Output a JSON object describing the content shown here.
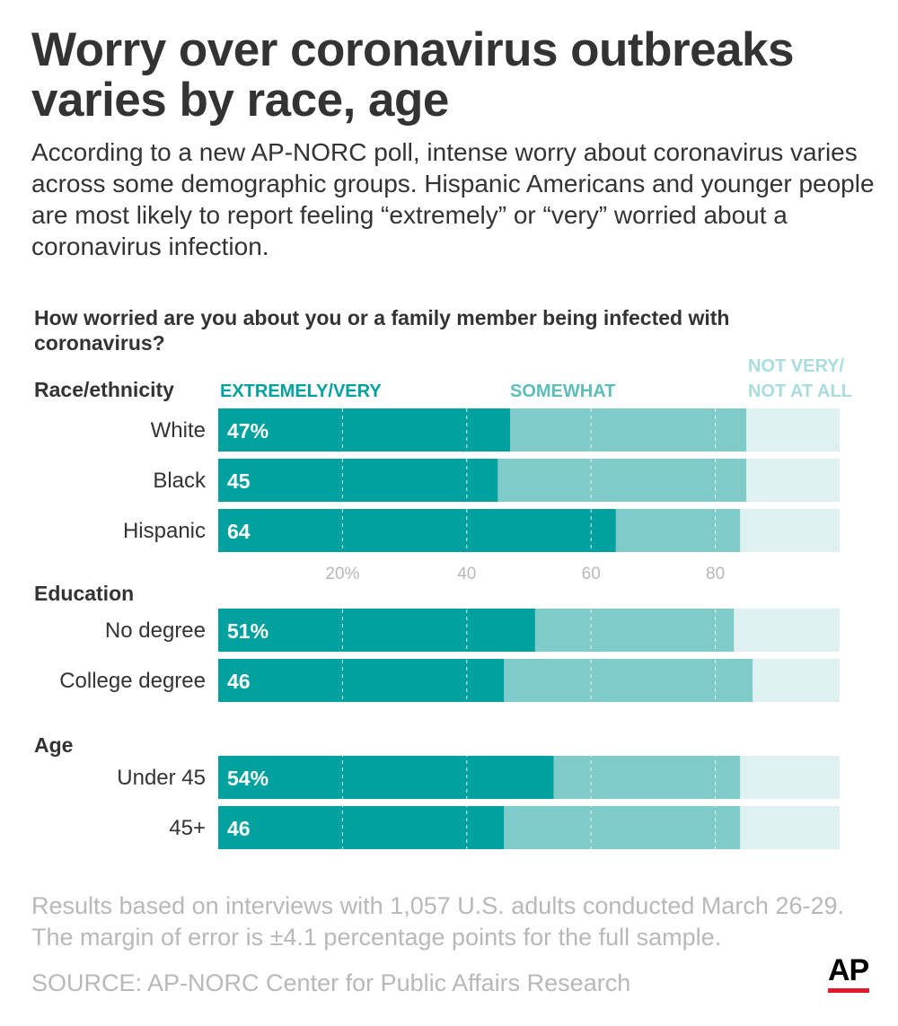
{
  "header": {
    "title": "Worry over coronavirus outbreaks varies by race, age",
    "intro": "According to a new AP-NORC poll, intense worry about coronavirus varies across some demographic groups. Hispanic Americans and younger people are most likely to report feeling “extremely” or “very” worried about a coronavirus infection."
  },
  "footer": {
    "note": "Results based on interviews with 1,057 U.S. adults conducted March 26-29. The margin of error is ±4.1 percentage points for the full sample.",
    "source": "SOURCE: AP-NORC Center for Public Affairs Research",
    "logo_text": "AP",
    "logo_accent": "#e3182d"
  },
  "chart_data": {
    "type": "bar",
    "orientation": "horizontal",
    "stacked": true,
    "title": "How worried are you about you or a family member being infected with coronavirus?",
    "xlim": [
      0,
      100
    ],
    "x_ticks": [
      {
        "value": 20,
        "label": "20%"
      },
      {
        "value": 40,
        "label": "40"
      },
      {
        "value": 60,
        "label": "60"
      },
      {
        "value": 80,
        "label": "80"
      }
    ],
    "grid": true,
    "series": [
      {
        "name": "EXTREMELY/VERY",
        "color": "#00a19e"
      },
      {
        "name": "SOMEWHAT",
        "color": "#7ecbca"
      },
      {
        "name": "NOT VERY/ NOT AT ALL",
        "color": "#dff0f1"
      }
    ],
    "groups": [
      {
        "label": "Race/ethnicity",
        "rows": [
          {
            "label": "White",
            "values": [
              47,
              38,
              15
            ],
            "value_label": "47%"
          },
          {
            "label": "Black",
            "values": [
              45,
              40,
              15
            ],
            "value_label": "45"
          },
          {
            "label": "Hispanic",
            "values": [
              64,
              20,
              16
            ],
            "value_label": "64"
          }
        ]
      },
      {
        "label": "Education",
        "rows": [
          {
            "label": "No degree",
            "values": [
              51,
              32,
              17
            ],
            "value_label": "51%"
          },
          {
            "label": "College degree",
            "values": [
              46,
              40,
              14
            ],
            "value_label": "46"
          }
        ]
      },
      {
        "label": "Age",
        "rows": [
          {
            "label": "Under 45",
            "values": [
              54,
              30,
              16
            ],
            "value_label": "54%"
          },
          {
            "label": "45+",
            "values": [
              46,
              38,
              16
            ],
            "value_label": "46"
          }
        ]
      }
    ]
  }
}
